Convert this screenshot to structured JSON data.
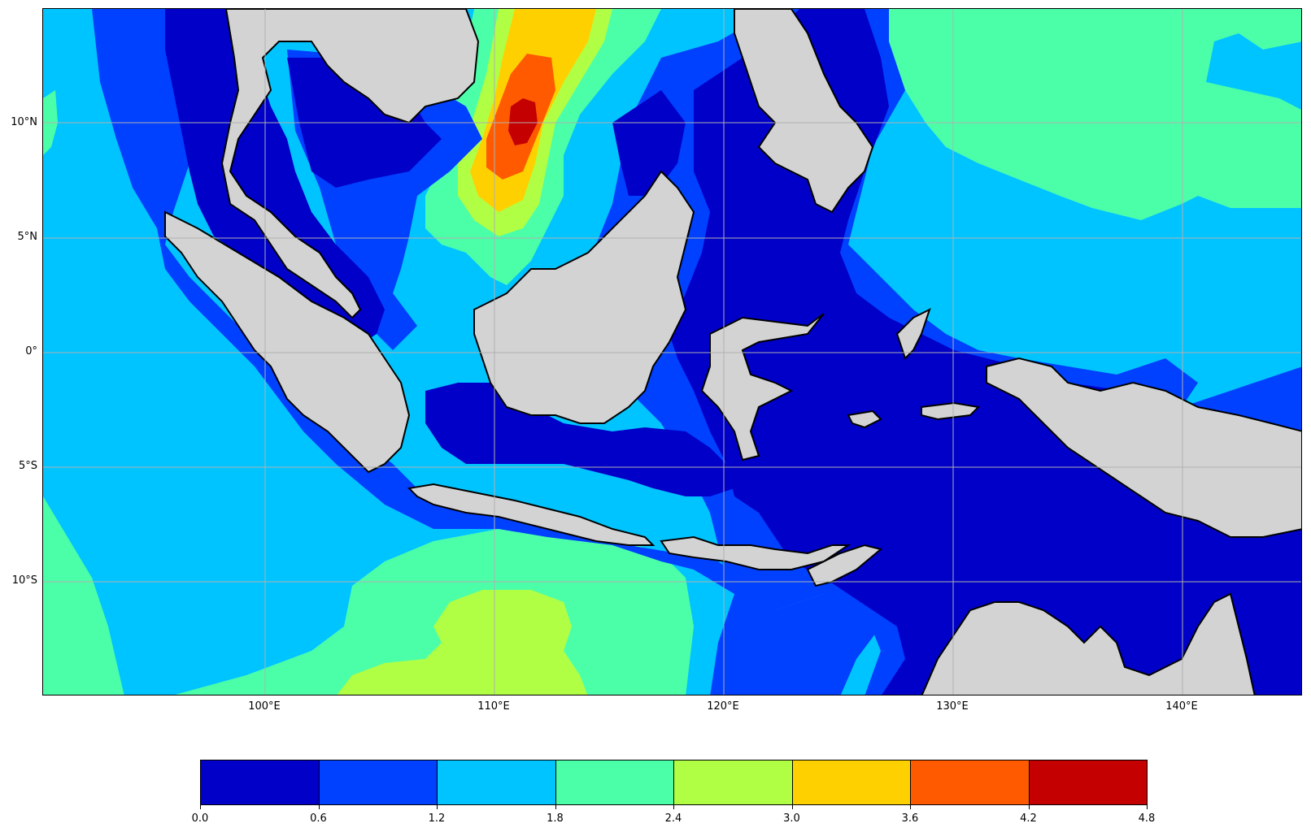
{
  "map": {
    "lon_labels": [
      "100°E",
      "110°E",
      "120°E",
      "130°E",
      "140°E"
    ],
    "lat_labels": [
      "10°N",
      "5°N",
      "0°",
      "5°S",
      "10°S"
    ],
    "land_color": "#d3d3d3",
    "coastline_color": "#000000",
    "grid_color": "#b0b0b0"
  },
  "colorbar": {
    "tick_labels": [
      "0.0",
      "0.6",
      "1.2",
      "1.8",
      "2.4",
      "3.0",
      "3.6",
      "4.2",
      "4.8"
    ],
    "colors": [
      "#0000c8",
      "#0040ff",
      "#00c4ff",
      "#4bffa9",
      "#b0ff45",
      "#ffd000",
      "#ff5a00",
      "#c40000"
    ],
    "levels": [
      0.0,
      0.6,
      1.2,
      1.8,
      2.4,
      3.0,
      3.6,
      4.2,
      4.8
    ]
  }
}
